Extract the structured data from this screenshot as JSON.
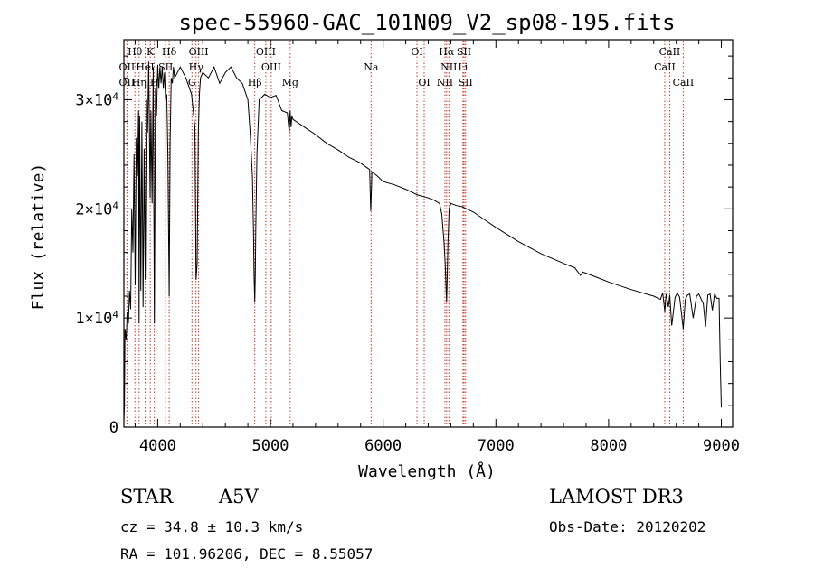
{
  "chart_data": {
    "type": "line",
    "title": "spec-55960-GAC_101N09_V2_sp08-195.fits",
    "xlabel": "Wavelength (Å)",
    "ylabel": "Flux (relative)",
    "xlim": [
      3700,
      9100
    ],
    "ylim": [
      0,
      35500
    ],
    "x_ticks": [
      {
        "v": 4000,
        "label": "4000"
      },
      {
        "v": 5000,
        "label": "5000"
      },
      {
        "v": 6000,
        "label": "6000"
      },
      {
        "v": 7000,
        "label": "7000"
      },
      {
        "v": 8000,
        "label": "8000"
      },
      {
        "v": 9000,
        "label": "9000"
      }
    ],
    "y_ticks": [
      {
        "v": 0,
        "label": "0",
        "exp": ""
      },
      {
        "v": 10000,
        "label": "1×10",
        "exp": "4"
      },
      {
        "v": 20000,
        "label": "2×10",
        "exp": "4"
      },
      {
        "v": 30000,
        "label": "3×10",
        "exp": "4"
      }
    ],
    "series": [
      {
        "name": "spectrum",
        "x": [
          3700,
          3705,
          3710,
          3720,
          3730,
          3740,
          3750,
          3760,
          3770,
          3780,
          3790,
          3800,
          3810,
          3820,
          3830,
          3835,
          3840,
          3850,
          3860,
          3870,
          3880,
          3889,
          3900,
          3910,
          3920,
          3933,
          3940,
          3950,
          3960,
          3970,
          3980,
          3990,
          4000,
          4010,
          4020,
          4030,
          4040,
          4050,
          4060,
          4070,
          4080,
          4090,
          4102,
          4110,
          4120,
          4130,
          4140,
          4150,
          4175,
          4200,
          4250,
          4300,
          4330,
          4340,
          4350,
          4360,
          4370,
          4380,
          4400,
          4450,
          4500,
          4550,
          4600,
          4650,
          4700,
          4750,
          4800,
          4820,
          4840,
          4850,
          4855,
          4861,
          4866,
          4870,
          4880,
          4900,
          4950,
          5000,
          5050,
          5100,
          5150,
          5167,
          5175,
          5183,
          5190,
          5200,
          5300,
          5400,
          5500,
          5600,
          5700,
          5800,
          5880,
          5890,
          5896,
          5900,
          5950,
          6000,
          6100,
          6200,
          6300,
          6400,
          6450,
          6500,
          6520,
          6540,
          6550,
          6557,
          6563,
          6568,
          6575,
          6585,
          6600,
          6650,
          6700,
          6800,
          6900,
          7000,
          7200,
          7400,
          7600,
          7700,
          7750,
          7770,
          7800,
          7900,
          8000,
          8200,
          8400,
          8460,
          8480,
          8498,
          8510,
          8530,
          8542,
          8560,
          8590,
          8610,
          8630,
          8662,
          8680,
          8700,
          8720,
          8750,
          8780,
          8800,
          8840,
          8860,
          8880,
          8900,
          8920,
          8940,
          8960,
          8980,
          8990,
          9000
        ],
        "y": [
          500,
          2000,
          9000,
          8000,
          10500,
          9500,
          12500,
          10800,
          20000,
          16000,
          25000,
          13000,
          26500,
          23000,
          29000,
          9500,
          28500,
          12500,
          28000,
          11000,
          25500,
          13500,
          30000,
          27000,
          33500,
          21000,
          29000,
          20500,
          33000,
          9500,
          31000,
          28500,
          33200,
          31000,
          33000,
          31500,
          33000,
          31000,
          32500,
          30000,
          30500,
          25000,
          12000,
          26000,
          32000,
          31500,
          33000,
          32000,
          32500,
          33000,
          32000,
          30500,
          27500,
          13500,
          15000,
          27000,
          30500,
          32000,
          32500,
          32000,
          33000,
          31500,
          32500,
          33000,
          32000,
          31500,
          30000,
          27000,
          23000,
          18000,
          14000,
          11500,
          14000,
          18000,
          25000,
          30000,
          30500,
          30200,
          30400,
          29000,
          28800,
          27000,
          29000,
          27500,
          28500,
          28200,
          27500,
          26800,
          26000,
          25400,
          24700,
          24200,
          23600,
          19800,
          21800,
          23400,
          23000,
          22500,
          22200,
          21800,
          21300,
          21000,
          20800,
          20500,
          19500,
          17000,
          15000,
          13000,
          11500,
          13500,
          17000,
          20000,
          20500,
          20300,
          20200,
          19700,
          19000,
          18300,
          17000,
          15900,
          15000,
          14600,
          13900,
          14200,
          14100,
          13700,
          13300,
          12600,
          12000,
          11700,
          12300,
          10600,
          12200,
          11000,
          12100,
          9300,
          11900,
          12300,
          11900,
          9000,
          11700,
          12100,
          12200,
          10000,
          12000,
          12200,
          11300,
          9200,
          12100,
          12200,
          10700,
          12200,
          11800,
          11800,
          6000,
          1800
        ]
      }
    ],
    "lines_upper": [
      {
        "label": "Hθ",
        "x": 3798
      },
      {
        "label": "K",
        "x": 3934
      },
      {
        "label": "Hδ",
        "x": 4102
      },
      {
        "label": "OIII",
        "x": 4363
      },
      {
        "label": "OIII",
        "x": 4959
      },
      {
        "label": "OI",
        "x": 6300
      },
      {
        "label": "Hα",
        "x": 6563
      },
      {
        "label": "SII",
        "x": 6717
      },
      {
        "label": "CaII",
        "x": 8542
      }
    ],
    "lines_middle": [
      {
        "label": "OII",
        "x": 3727
      },
      {
        "label": "HeI",
        "x": 3889
      },
      {
        "label": "SII",
        "x": 4071
      },
      {
        "label": "Hγ",
        "x": 4340
      },
      {
        "label": "OIII",
        "x": 5007
      },
      {
        "label": "Na",
        "x": 5893
      },
      {
        "label": "NII",
        "x": 6583
      },
      {
        "label": "Li",
        "x": 6708
      },
      {
        "label": "CaII",
        "x": 8498
      }
    ],
    "lines_lower": [
      {
        "label": "OII",
        "x": 3727
      },
      {
        "label": "Hη",
        "x": 3835
      },
      {
        "label": "H",
        "x": 3970
      },
      {
        "label": "G",
        "x": 4304
      },
      {
        "label": "Hβ",
        "x": 4861
      },
      {
        "label": "Mg",
        "x": 5175
      },
      {
        "label": "OI",
        "x": 6364
      },
      {
        "label": "NII",
        "x": 6548
      },
      {
        "label": "SII",
        "x": 6731
      },
      {
        "label": "CaII",
        "x": 8662
      }
    ]
  },
  "footer": {
    "object_type": "STAR",
    "spectral_class": "A5V",
    "survey": "LAMOST DR3",
    "cz": "cz = 34.8 ± 10.3 km/s",
    "obs_date": "Obs-Date: 20120202",
    "radec": "RA = 101.96206, DEC =   8.55057"
  },
  "colors": {
    "axis": "#000000",
    "spectrum": "#000000",
    "line_marker": "#c0392b"
  }
}
